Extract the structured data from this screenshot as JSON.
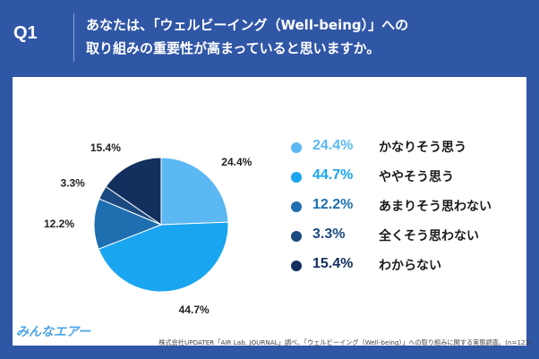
{
  "header": {
    "q_label": "Q1",
    "question_line1": "あなたは、「ウェルビーイング（Well-being）」への",
    "question_line2": "取り組みの重要性が高まっていると思いますか。"
  },
  "chart_data": {
    "type": "pie",
    "title": "",
    "slices": [
      {
        "label": "かなりそう思う",
        "value": 24.4,
        "text": "24.4%",
        "color": "#5cb8f2"
      },
      {
        "label": "ややそう思う",
        "value": 44.7,
        "text": "44.7%",
        "color": "#1aa5f0"
      },
      {
        "label": "あまりそう思わない",
        "value": 12.2,
        "text": "12.2%",
        "color": "#1f6fb0"
      },
      {
        "label": "全くそう思わない",
        "value": 3.3,
        "text": "3.3%",
        "color": "#1c4a80"
      },
      {
        "label": "わからない",
        "value": 15.4,
        "text": "15.4%",
        "color": "#132f5e"
      }
    ],
    "legend_position": "right"
  },
  "footer": {
    "logo": "みんなエアー",
    "source": "株式会社UPDATER「AIR Lab. JOURNAL」調べ、「ウェルビーイング（Well-being）」への取り組みに関する実態調査。(n=123)"
  }
}
